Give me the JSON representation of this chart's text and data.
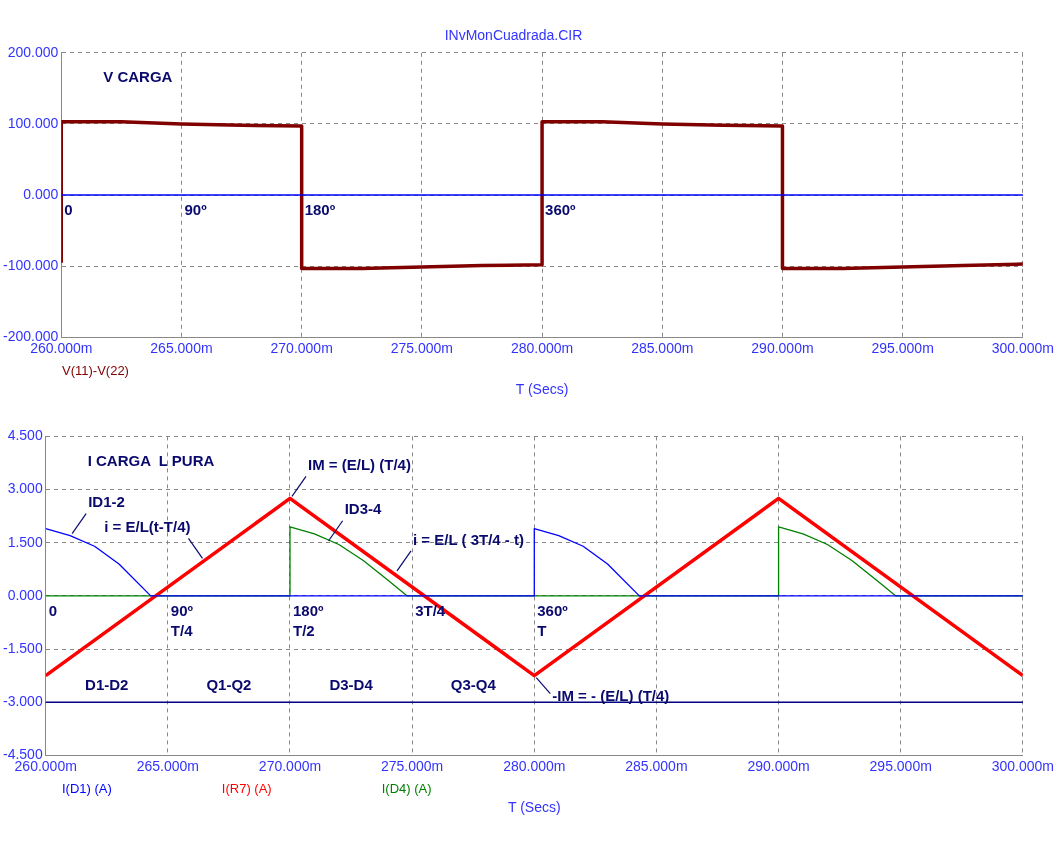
{
  "chart_data": [
    {
      "type": "line",
      "title": "INvMonCuadrada.CIR",
      "xlabel": "T (Secs)",
      "xlim": [
        260,
        300
      ],
      "xticks": [
        {
          "value": 260,
          "label": "260.000m"
        },
        {
          "value": 265,
          "label": "265.000m"
        },
        {
          "value": 270,
          "label": "270.000m"
        },
        {
          "value": 275,
          "label": "275.000m"
        },
        {
          "value": 280,
          "label": "280.000m"
        },
        {
          "value": 285,
          "label": "285.000m"
        },
        {
          "value": 290,
          "label": "290.000m"
        },
        {
          "value": 295,
          "label": "295.000m"
        },
        {
          "value": 300,
          "label": "300.000m"
        }
      ],
      "ylim": [
        -200,
        200
      ],
      "yticks": [
        {
          "value": -200,
          "label": "-200.000"
        },
        {
          "value": -100,
          "label": "-100.000"
        },
        {
          "value": 0,
          "label": "0.000"
        },
        {
          "value": 100,
          "label": "100.000"
        },
        {
          "value": 200,
          "label": "200.000"
        }
      ],
      "grid": true,
      "legend": "bottom left",
      "marker": "none",
      "ref_lines": [
        {
          "axis": "y",
          "value": 0,
          "color": "#0000ff"
        }
      ],
      "series": [
        {
          "name": "V(11)-V(22)",
          "color": "#800000",
          "x": [
            260,
            260,
            262.5,
            265,
            267.5,
            270,
            270,
            272.5,
            275,
            277.5,
            280,
            280,
            282.5,
            285,
            287.5,
            290,
            290,
            292.5,
            295,
            297.5,
            300
          ],
          "values": [
            -95,
            103,
            103,
            100,
            98,
            97,
            -103,
            -103,
            -101,
            -99,
            -98,
            103,
            103,
            100,
            98,
            97,
            -103,
            -103,
            -101,
            -99,
            -97
          ]
        }
      ],
      "annotations": [
        "V CARGA",
        {
          "text": "0",
          "x": 260,
          "y": 0
        },
        {
          "text": "90º",
          "x": 265,
          "y": 0
        },
        {
          "text": "180º",
          "x": 270,
          "y": 0
        },
        {
          "text": "360º",
          "x": 280,
          "y": 0
        }
      ]
    },
    {
      "type": "line",
      "xlabel": "T (Secs)",
      "xlim": [
        260,
        300
      ],
      "xticks": [
        {
          "value": 260,
          "label": "260.000m"
        },
        {
          "value": 265,
          "label": "265.000m"
        },
        {
          "value": 270,
          "label": "270.000m"
        },
        {
          "value": 275,
          "label": "275.000m"
        },
        {
          "value": 280,
          "label": "280.000m"
        },
        {
          "value": 285,
          "label": "285.000m"
        },
        {
          "value": 290,
          "label": "290.000m"
        },
        {
          "value": 295,
          "label": "295.000m"
        },
        {
          "value": 300,
          "label": "300.000m"
        }
      ],
      "ylim": [
        -4.5,
        4.5
      ],
      "yticks": [
        {
          "value": -4.5,
          "label": "-4.500"
        },
        {
          "value": -3,
          "label": "-3.000"
        },
        {
          "value": -1.5,
          "label": "-1.500"
        },
        {
          "value": 0,
          "label": "0.000"
        },
        {
          "value": 1.5,
          "label": "1.500"
        },
        {
          "value": 3,
          "label": "3.000"
        },
        {
          "value": 4.5,
          "label": "4.500"
        }
      ],
      "grid": true,
      "legend": "bottom left",
      "marker": "none",
      "ref_lines": [
        {
          "axis": "y",
          "value": -3,
          "color": "#000080"
        }
      ],
      "series": [
        {
          "name": "I(D1) (A)",
          "color": "#0000ff",
          "x": [
            260,
            261,
            262,
            263,
            264.3,
            280,
            280,
            281,
            282,
            283,
            284.3,
            300
          ],
          "values": [
            1.9,
            1.7,
            1.4,
            0.9,
            0,
            0,
            1.9,
            1.7,
            1.4,
            0.9,
            0,
            0
          ]
        },
        {
          "name": "I(R7) (A)",
          "color": "#ff0000",
          "x": [
            260,
            270,
            280,
            290,
            300
          ],
          "values": [
            -2.25,
            2.75,
            -2.25,
            2.75,
            -2.25
          ]
        },
        {
          "name": "I(D4) (A)",
          "color": "#008000",
          "x": [
            260,
            270,
            270,
            271,
            272,
            273,
            274,
            274.8,
            290,
            290,
            291,
            292,
            293,
            294,
            294.8,
            300
          ],
          "values": [
            0,
            0,
            1.95,
            1.75,
            1.45,
            1.0,
            0.45,
            0,
            0,
            1.95,
            1.75,
            1.45,
            1.0,
            0.45,
            0,
            0
          ]
        }
      ],
      "annotations": [
        "I CARGA  L PURA",
        {
          "text": "ID1-2",
          "x": 261,
          "y": 1.7
        },
        {
          "text": "i = E/L(t-T/4)",
          "x": 266.5,
          "y": 1.0
        },
        {
          "text": "IM = (E/L) (T/4)",
          "x": 270,
          "y": 2.75
        },
        {
          "text": "ID3-4",
          "x": 271.5,
          "y": 1.5
        },
        {
          "text": "i = E/L ( 3T/4 - t)",
          "x": 274.3,
          "y": 0.65
        },
        {
          "text": "0",
          "x": 260,
          "y": 0
        },
        {
          "text": "90º",
          "x": 265,
          "y": 0
        },
        {
          "text": "T/4",
          "x": 265,
          "y": 0
        },
        {
          "text": "180º",
          "x": 270,
          "y": 0
        },
        {
          "text": "T/2",
          "x": 270,
          "y": 0
        },
        {
          "text": "3T/4",
          "x": 275,
          "y": 0
        },
        {
          "text": "360º",
          "x": 280,
          "y": 0
        },
        {
          "text": "T",
          "x": 280,
          "y": 0
        },
        {
          "text": "-IM = - (E/L) (T/4)",
          "x": 280,
          "y": -2.25
        },
        {
          "text": "D1-D2",
          "x": 262.5,
          "y": -3
        },
        {
          "text": "Q1-Q2",
          "x": 267.5,
          "y": -3
        },
        {
          "text": "D3-D4",
          "x": 272.5,
          "y": -3
        },
        {
          "text": "Q3-Q4",
          "x": 277.5,
          "y": -3
        }
      ]
    }
  ]
}
